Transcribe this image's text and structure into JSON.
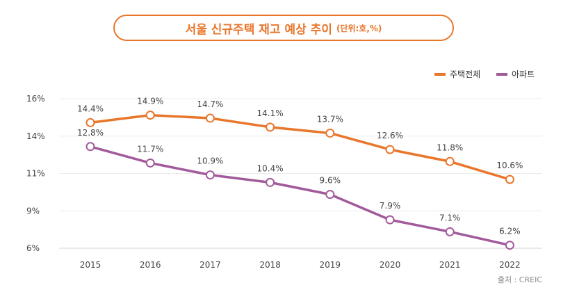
{
  "title": {
    "main": "서울 신규주택 재고 예상 추이",
    "unit": "(단위:호,%)"
  },
  "chart_data": {
    "type": "line",
    "title": "서울 신규주택 재고 예상 추이",
    "unit_note": "(단위:호,%)",
    "categories": [
      "2015",
      "2016",
      "2017",
      "2018",
      "2019",
      "2020",
      "2021",
      "2022"
    ],
    "y_ticks": [
      {
        "value": 6,
        "label": "6%"
      },
      {
        "value": 8.5,
        "label": "9%"
      },
      {
        "value": 11,
        "label": "11%"
      },
      {
        "value": 13.5,
        "label": "14%"
      },
      {
        "value": 16,
        "label": "16%"
      }
    ],
    "ylim": [
      6,
      16
    ],
    "legend_position": "top-right",
    "series": [
      {
        "name": "주택전체",
        "color": "#e8762b",
        "values": [
          14.4,
          14.9,
          14.7,
          14.1,
          13.7,
          12.6,
          11.8,
          10.6
        ],
        "labels": [
          "14.4%",
          "14.9%",
          "14.7%",
          "14.1%",
          "13.7%",
          "12.6%",
          "11.8%",
          "10.6%"
        ]
      },
      {
        "name": "아파트",
        "color": "#a25a9b",
        "values": [
          12.8,
          11.7,
          10.9,
          10.4,
          9.6,
          7.9,
          7.1,
          6.2
        ],
        "labels": [
          "12.8%",
          "11.7%",
          "10.9%",
          "10.4%",
          "9.6%",
          "7.9%",
          "7.1%",
          "6.2%"
        ]
      }
    ],
    "source": "출처 : CREIC"
  }
}
